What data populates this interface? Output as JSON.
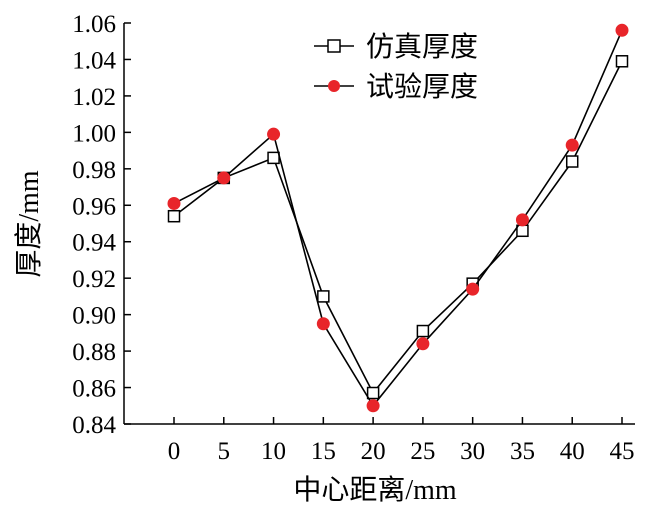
{
  "chart_data": {
    "type": "line",
    "x": [
      0,
      5,
      10,
      15,
      20,
      25,
      30,
      35,
      40,
      45
    ],
    "series": [
      {
        "name": "仿真厚度",
        "marker": "open-square",
        "color": "#000000",
        "values": [
          0.954,
          0.975,
          0.986,
          0.91,
          0.857,
          0.891,
          0.917,
          0.946,
          0.984,
          1.039
        ]
      },
      {
        "name": "试验厚度",
        "marker": "filled-circle",
        "color": "#e8252a",
        "values": [
          0.961,
          0.975,
          0.999,
          0.895,
          0.85,
          0.884,
          0.914,
          0.952,
          0.993,
          1.056
        ]
      }
    ],
    "xlabel": "中心距离/mm",
    "ylabel": "厚度/mm",
    "xticks": [
      "0",
      "5",
      "10",
      "15",
      "20",
      "25",
      "30",
      "35",
      "40",
      "45"
    ],
    "yticks": [
      "0.84",
      "0.86",
      "0.88",
      "0.90",
      "0.92",
      "0.94",
      "0.96",
      "0.98",
      "1.00",
      "1.02",
      "1.04",
      "1.06"
    ],
    "xlim": [
      -10,
      45
    ],
    "ylim": [
      0.84,
      1.06
    ],
    "grid": false,
    "legend_position": "top-center"
  }
}
